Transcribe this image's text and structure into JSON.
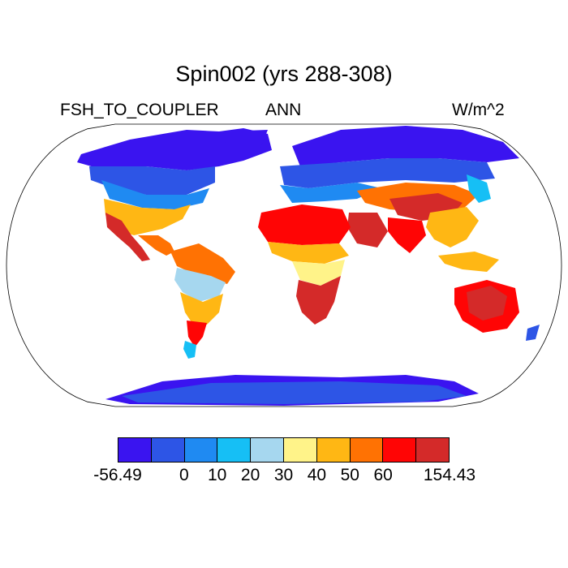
{
  "title": "Spin002 (yrs 288-308)",
  "subtitle_left": "FSH_TO_COUPLER",
  "subtitle_center": "ANN",
  "subtitle_right": "W/m^2",
  "colorbar": {
    "colors": [
      "#3a14f0",
      "#2d55e6",
      "#1f8af2",
      "#16bff5",
      "#a6d7ef",
      "#fff389",
      "#ffb714",
      "#ff7203",
      "#ff0505",
      "#d42a29"
    ],
    "labels": [
      "-56.49",
      "0",
      "10",
      "20",
      "30",
      "40",
      "50",
      "60",
      "154.43"
    ]
  },
  "chart_data": {
    "type": "heatmap",
    "title": "Spin002 (yrs 288-308)",
    "variable": "FSH_TO_COUPLER",
    "season": "ANN",
    "units": "W/m^2",
    "projection": "Robinson",
    "range": [
      -56.49,
      154.43
    ],
    "levels": [
      0,
      10,
      20,
      30,
      40,
      50,
      60
    ]
  }
}
